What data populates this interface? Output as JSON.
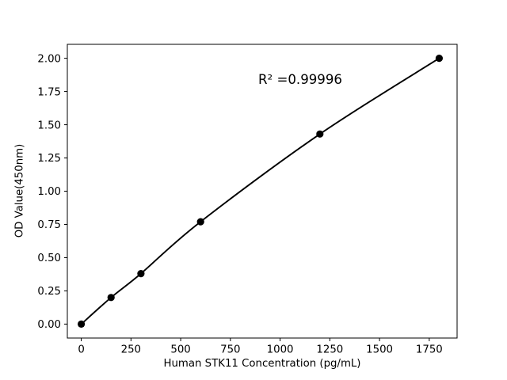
{
  "figure": {
    "background_color": "#ffffff",
    "foreground_color": "#000000"
  },
  "annotation": {
    "r_squared_label": "R² =0.99996"
  },
  "axes": {
    "xlabel": "Human STK11 Concentration (pg/mL)",
    "ylabel": "OD Value(450nm)",
    "xtick_labels": [
      "0",
      "250",
      "500",
      "750",
      "1000",
      "1250",
      "1500",
      "1750"
    ],
    "ytick_labels": [
      "0.00",
      "0.25",
      "0.50",
      "0.75",
      "1.00",
      "1.25",
      "1.50",
      "1.75",
      "2.00"
    ]
  },
  "chart_data": {
    "type": "line",
    "x": [
      0,
      150,
      300,
      600,
      1200,
      1800
    ],
    "y": [
      0.0,
      0.2,
      0.38,
      0.77,
      1.43,
      2.0
    ],
    "title": "",
    "xlabel": "Human STK11 Concentration (pg/mL)",
    "ylabel": "OD Value(450nm)",
    "xticks": [
      0,
      250,
      500,
      750,
      1000,
      1250,
      1500,
      1750
    ],
    "yticks": [
      0.0,
      0.25,
      0.5,
      0.75,
      1.0,
      1.25,
      1.5,
      1.75,
      2.0
    ],
    "xlim": [
      -70,
      1890
    ],
    "ylim": [
      -0.105,
      2.105
    ],
    "grid": false,
    "legend": false,
    "marker": "circle",
    "line_color": "#000000",
    "marker_color": "#000000",
    "annotations": [
      {
        "text": "R² =0.99996"
      }
    ]
  }
}
